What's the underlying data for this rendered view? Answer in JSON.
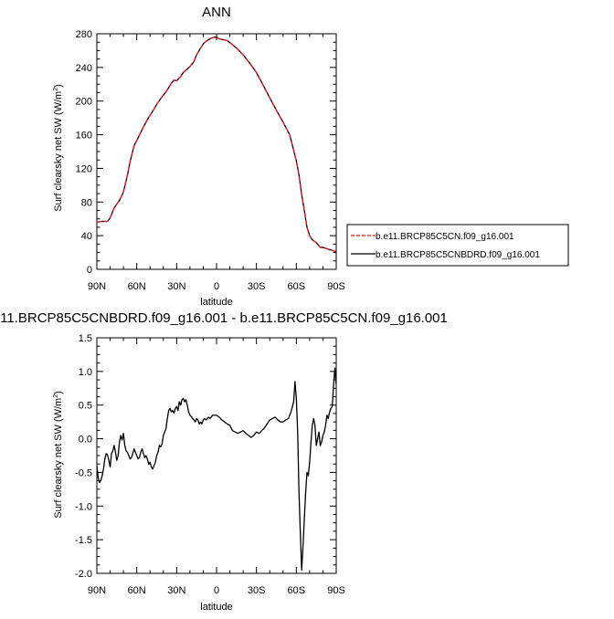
{
  "chart_data": [
    {
      "type": "line",
      "title": "ANN",
      "xlabel": "latitude",
      "ylabel": "Surf clearsky net SW (W/m²)",
      "ylabel_text": "Surf clearsky net SW (W/m",
      "ylabel_sup": "2",
      "ylabel_tail": ")",
      "xlim": [
        90,
        -90
      ],
      "ylim": [
        0,
        280
      ],
      "xticks": [
        90,
        60,
        30,
        0,
        -30,
        -60,
        -90
      ],
      "xtick_labels": [
        "90N",
        "60N",
        "30N",
        "0",
        "30S",
        "60S",
        "90S"
      ],
      "yticks": [
        0,
        40,
        80,
        120,
        160,
        200,
        240,
        280
      ],
      "ytick_labels": [
        "0",
        "40",
        "80",
        "120",
        "160",
        "200",
        "240",
        "280"
      ],
      "legend_position": "right",
      "series": [
        {
          "name": "b.e11.BRCP85C5CN.f09_g16.001",
          "color": "#e8141c",
          "style": "dashed",
          "x": [
            90,
            86,
            82,
            80,
            77,
            73,
            70,
            67,
            65,
            62,
            60,
            56,
            52,
            48,
            45,
            42,
            38,
            34,
            32,
            30,
            27,
            25,
            22,
            20,
            17,
            15,
            12,
            10,
            8,
            5,
            2,
            0,
            -2,
            -5,
            -8,
            -12,
            -15,
            -20,
            -25,
            -30,
            -35,
            -40,
            -45,
            -50,
            -55,
            -60,
            -62,
            -64,
            -66,
            -68,
            -70,
            -72,
            -74,
            -76,
            -78,
            -80,
            -82,
            -84,
            -86,
            -88,
            -90
          ],
          "y": [
            56,
            57,
            57,
            61,
            73,
            82,
            92,
            112,
            128,
            147,
            153,
            166,
            178,
            188,
            196,
            203,
            211,
            221,
            225,
            224,
            229,
            234,
            238,
            241,
            247,
            255,
            263,
            268,
            271,
            274,
            276,
            276,
            274,
            273,
            272,
            267,
            263,
            255,
            245,
            234,
            219,
            204,
            189,
            175,
            160,
            129,
            112,
            89,
            70,
            50,
            40,
            35,
            33,
            30,
            26,
            26,
            25,
            24,
            23,
            22,
            21
          ]
        },
        {
          "name": "b.e11.BRCP85C5CNBDRD.f09_g16.001",
          "color": "#000000",
          "style": "solid",
          "x": [
            90,
            86,
            82,
            80,
            77,
            73,
            70,
            67,
            65,
            62,
            60,
            56,
            52,
            48,
            45,
            42,
            38,
            34,
            32,
            30,
            27,
            25,
            22,
            20,
            17,
            15,
            12,
            10,
            8,
            5,
            2,
            0,
            -2,
            -5,
            -8,
            -12,
            -15,
            -20,
            -25,
            -30,
            -35,
            -40,
            -45,
            -50,
            -55,
            -60,
            -62,
            -64,
            -66,
            -68,
            -70,
            -72,
            -74,
            -76,
            -78,
            -80,
            -82,
            -84,
            -86,
            -88,
            -90
          ],
          "y": [
            56,
            57,
            57,
            61,
            73,
            82,
            92,
            112,
            128,
            147,
            153,
            166,
            178,
            188,
            196,
            203,
            211,
            221,
            225,
            224,
            229,
            234,
            238,
            241,
            247,
            255,
            263,
            268,
            271,
            274,
            276,
            276,
            274,
            273,
            272,
            267,
            263,
            255,
            245,
            234,
            219,
            204,
            189,
            175,
            160,
            129,
            112,
            89,
            70,
            50,
            40,
            35,
            33,
            30,
            26,
            26,
            25,
            24,
            23,
            22,
            21
          ]
        }
      ]
    },
    {
      "type": "line",
      "title": "11.BRCP85C5CNBDRD.f09_g16.001 - b.e11.BRCP85C5CN.f09_g16.001",
      "xlabel": "latitude",
      "ylabel": "Surf clearsky net SW (W/m²)",
      "ylabel_text": "Surf clearsky net SW (W/m",
      "ylabel_sup": "2",
      "ylabel_tail": ")",
      "xlim": [
        90,
        -90
      ],
      "ylim": [
        -2.0,
        1.5
      ],
      "xticks": [
        90,
        60,
        30,
        0,
        -30,
        -60,
        -90
      ],
      "xtick_labels": [
        "90N",
        "60N",
        "30N",
        "0",
        "30S",
        "60S",
        "90S"
      ],
      "yticks": [
        -2.0,
        -1.5,
        -1.0,
        -0.5,
        0.0,
        0.5,
        1.0,
        1.5
      ],
      "ytick_labels": [
        "-2.0",
        "-1.5",
        "-1.0",
        "-0.5",
        "0.0",
        "0.5",
        "1.0",
        "1.5"
      ],
      "series": [
        {
          "color": "#000000",
          "style": "solid",
          "x": [
            90,
            89,
            88,
            87,
            86,
            85,
            84,
            83,
            82,
            81,
            80,
            79,
            78,
            77,
            76,
            75,
            74,
            73,
            72,
            71,
            70,
            69,
            68,
            67,
            66,
            65,
            64,
            63,
            62,
            61,
            60,
            59,
            58,
            57,
            56,
            55,
            54,
            53,
            52,
            51,
            50,
            49,
            48,
            47,
            46,
            45,
            44,
            43,
            42,
            41,
            40,
            39,
            38,
            37,
            36,
            35,
            34,
            33,
            32,
            31,
            30,
            29,
            28,
            27,
            26,
            25,
            24,
            23,
            22,
            21,
            20,
            19,
            18,
            17,
            16,
            15,
            14,
            13,
            12,
            11,
            10,
            9,
            8,
            7,
            6,
            5,
            4,
            3,
            2,
            1,
            0,
            -2,
            -4,
            -6,
            -8,
            -10,
            -12,
            -14,
            -16,
            -18,
            -20,
            -22,
            -24,
            -26,
            -28,
            -30,
            -32,
            -34,
            -36,
            -38,
            -40,
            -42,
            -44,
            -46,
            -48,
            -50,
            -52,
            -54,
            -56,
            -58,
            -59,
            -60,
            -61,
            -62,
            -63,
            -64,
            -65,
            -66,
            -67,
            -68,
            -69,
            -70,
            -71,
            -72,
            -73,
            -74,
            -75,
            -76,
            -77,
            -78,
            -79,
            -80,
            -81,
            -82,
            -83,
            -84,
            -85,
            -86,
            -87,
            -88,
            -89,
            -90
          ],
          "y": [
            -0.4,
            -0.58,
            -0.65,
            -0.62,
            -0.55,
            -0.45,
            -0.3,
            -0.22,
            -0.24,
            -0.32,
            -0.42,
            -0.22,
            -0.18,
            -0.1,
            -0.2,
            -0.32,
            -0.25,
            -0.05,
            0.05,
            -0.02,
            0.08,
            -0.1,
            -0.18,
            -0.2,
            -0.25,
            -0.3,
            -0.28,
            -0.22,
            -0.15,
            -0.2,
            -0.25,
            -0.3,
            -0.28,
            -0.2,
            -0.15,
            -0.22,
            -0.28,
            -0.25,
            -0.3,
            -0.38,
            -0.35,
            -0.42,
            -0.45,
            -0.4,
            -0.35,
            -0.25,
            -0.2,
            -0.1,
            -0.12,
            -0.08,
            0.05,
            0.1,
            0.15,
            0.3,
            0.42,
            0.45,
            0.4,
            0.42,
            0.38,
            0.45,
            0.48,
            0.42,
            0.55,
            0.5,
            0.58,
            0.6,
            0.55,
            0.58,
            0.5,
            0.4,
            0.35,
            0.33,
            0.3,
            0.28,
            0.25,
            0.3,
            0.28,
            0.22,
            0.25,
            0.22,
            0.28,
            0.3,
            0.28,
            0.3,
            0.32,
            0.3,
            0.32,
            0.35,
            0.35,
            0.35,
            0.35,
            0.32,
            0.28,
            0.25,
            0.22,
            0.2,
            0.12,
            0.1,
            0.08,
            0.1,
            0.12,
            0.08,
            0.05,
            0.02,
            0.05,
            0.1,
            0.08,
            0.12,
            0.16,
            0.22,
            0.28,
            0.3,
            0.32,
            0.28,
            0.25,
            0.25,
            0.28,
            0.3,
            0.4,
            0.55,
            0.85,
            0.6,
            0.1,
            -0.8,
            -1.4,
            -1.95,
            -1.6,
            -1.2,
            -0.8,
            -0.5,
            -0.55,
            -0.35,
            -0.05,
            0.2,
            0.3,
            0.2,
            -0.1,
            0.0,
            0.1,
            -0.1,
            -0.05,
            0.05,
            0.1,
            0.2,
            0.35,
            0.3,
            0.4,
            0.45,
            0.48,
            0.8,
            1.05,
            0.8
          ]
        }
      ]
    }
  ]
}
